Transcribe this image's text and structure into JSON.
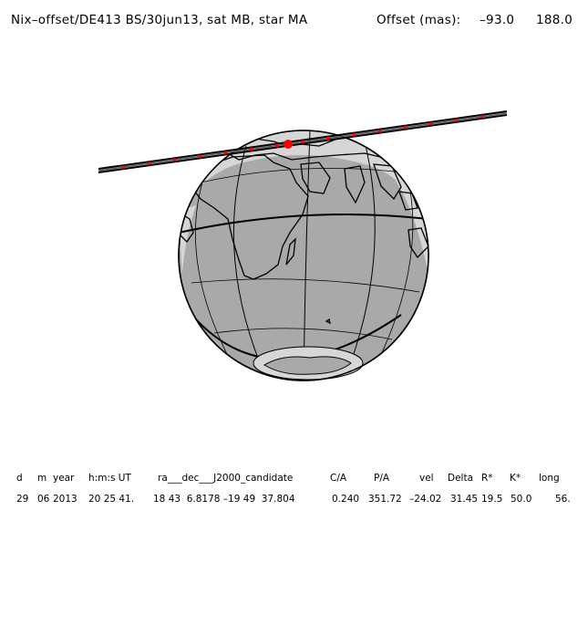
{
  "header": {
    "title": "Nix–offset/DE413 BS/30jun13, sat MB, star MA",
    "offset_label": "Offset (mas):",
    "offset_ra": "–93.0",
    "offset_dec": "188.0"
  },
  "table": {
    "headers": [
      "d",
      "m",
      "year",
      "h:m:s UT",
      "ra___dec___J2000_candidate",
      "C/A",
      "P/A",
      "vel",
      "Delta",
      "R*",
      "K*",
      "long"
    ],
    "values": [
      "29",
      "06",
      "2013",
      "20 25 41.",
      "18 43  6.8178 –19 49  37.804",
      "0.240",
      "351.72",
      "–24.02",
      "31.45",
      "19.5",
      "50.0",
      "56."
    ]
  },
  "colors": {
    "globe_land": "#a9a9a9",
    "globe_dark_side": "#a9a9a9",
    "globe_light_side": "#d6d6d6",
    "shadow_path": "#000000",
    "path_markers": "#ff0000"
  }
}
